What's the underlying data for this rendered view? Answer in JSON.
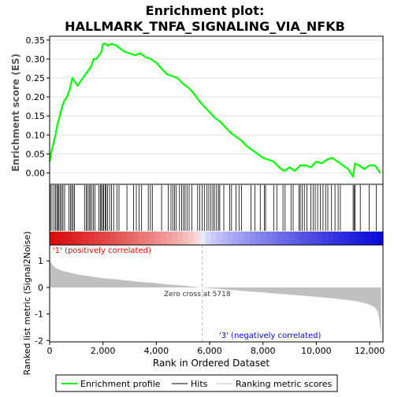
{
  "title_line1": "Enrichment plot:",
  "title_line2": "HALLMARK_TNFA_SIGNALING_VIA_NFKB",
  "colors": {
    "profile": "#00ff00",
    "hits": "#000000",
    "metric_fill": "#c0c0c0",
    "positive_label": "#ff0000",
    "negative_label": "#0000ff",
    "zero_cross_line": "#c0c0c0",
    "frame": "#000000"
  },
  "chart_data": [
    {
      "type": "line",
      "name": "enrichment-profile",
      "ylabel": "Enrichment score (ES)",
      "ylim": [
        -0.03,
        0.36
      ],
      "xlim": [
        0,
        12500
      ],
      "y_ticks": [
        0.0,
        0.05,
        0.1,
        0.15,
        0.2,
        0.25,
        0.3,
        0.35
      ],
      "y_tick_labels": [
        "0.00",
        "0.05",
        "0.10",
        "0.15",
        "0.20",
        "0.25",
        "0.30",
        "0.35"
      ],
      "grid": true,
      "x": [
        0,
        80,
        150,
        220,
        300,
        380,
        450,
        550,
        650,
        750,
        850,
        950,
        1050,
        1150,
        1250,
        1350,
        1450,
        1550,
        1650,
        1750,
        1850,
        1950,
        2000,
        2100,
        2200,
        2300,
        2400,
        2500,
        2600,
        2800,
        3000,
        3200,
        3400,
        3600,
        3800,
        4000,
        4200,
        4400,
        4600,
        4800,
        5000,
        5200,
        5400,
        5600,
        5800,
        6000,
        6200,
        6400,
        6600,
        6800,
        7000,
        7200,
        7400,
        7600,
        7800,
        8000,
        8200,
        8400,
        8600,
        8800,
        9000,
        9200,
        9400,
        9600,
        9800,
        10000,
        10200,
        10400,
        10600,
        10800,
        11000,
        11200,
        11380,
        11450,
        11600,
        11800,
        12000,
        12200,
        12400
      ],
      "y": [
        0.03,
        0.06,
        0.08,
        0.1,
        0.13,
        0.15,
        0.17,
        0.19,
        0.2,
        0.22,
        0.25,
        0.24,
        0.23,
        0.24,
        0.25,
        0.26,
        0.27,
        0.28,
        0.3,
        0.3,
        0.31,
        0.32,
        0.34,
        0.34,
        0.335,
        0.34,
        0.338,
        0.336,
        0.33,
        0.32,
        0.315,
        0.31,
        0.315,
        0.305,
        0.3,
        0.29,
        0.275,
        0.26,
        0.255,
        0.25,
        0.235,
        0.225,
        0.21,
        0.19,
        0.175,
        0.16,
        0.145,
        0.135,
        0.12,
        0.105,
        0.095,
        0.085,
        0.07,
        0.06,
        0.05,
        0.04,
        0.035,
        0.03,
        0.015,
        0.005,
        0.015,
        0.005,
        0.02,
        0.02,
        0.015,
        0.03,
        0.025,
        0.035,
        0.04,
        0.03,
        0.02,
        0.01,
        -0.01,
        0.025,
        0.02,
        0.01,
        0.02,
        0.02,
        0.0
      ]
    },
    {
      "type": "table",
      "name": "hits",
      "hit_positions": [
        30,
        90,
        160,
        220,
        270,
        310,
        350,
        400,
        450,
        500,
        560,
        720,
        780,
        830,
        880,
        930,
        1310,
        1370,
        1420,
        1480,
        1520,
        1580,
        1640,
        1700,
        1850,
        1900,
        1940,
        1990,
        2020,
        2080,
        2120,
        2170,
        2250,
        2320,
        2400,
        2520,
        2600,
        2900,
        3150,
        3250,
        3350,
        3450,
        3700,
        3780,
        3850,
        4200,
        4450,
        4550,
        4620,
        4680,
        4750,
        4870,
        4950,
        5020,
        5080,
        5150,
        5230,
        5330,
        5550,
        5630,
        5720,
        5800,
        5900,
        5970,
        6050,
        6120,
        6180,
        6260,
        6330,
        6380,
        6530,
        6750,
        6820,
        6990,
        7100,
        7200,
        7550,
        7700,
        7900,
        8050,
        8100,
        8400,
        8520,
        8750,
        8830,
        9050,
        9130,
        9350,
        9400,
        9470,
        9550,
        9650,
        9800,
        9880,
        9960,
        10050,
        10150,
        10250,
        10350,
        10430,
        10570,
        10700,
        10820,
        10900,
        11380,
        11420,
        11460,
        11650,
        11980,
        12250
      ]
    },
    {
      "type": "area",
      "name": "ranked-list-metric",
      "ylabel": "Ranked list metric (Signal2Noise)",
      "xlabel": "Rank in Ordered Dataset",
      "xlim": [
        0,
        12500
      ],
      "ylim": [
        -2.05,
        1.6
      ],
      "x_ticks": [
        0,
        2000,
        4000,
        6000,
        8000,
        10000,
        12000
      ],
      "x_tick_labels": [
        "0",
        "2,000",
        "4,000",
        "6,000",
        "8,000",
        "10,000",
        "12,000"
      ],
      "y_ticks": [
        -2,
        -1,
        0,
        1
      ],
      "y_tick_labels": [
        "-2",
        "-1",
        "0",
        "1"
      ],
      "zero_cross": 5718,
      "zero_cross_label": "Zero cross at 5718",
      "positive_label": "'1' (positively correlated)",
      "negative_label": "'3' (negatively correlated)",
      "x": [
        0,
        40,
        100,
        200,
        400,
        700,
        1000,
        1500,
        2000,
        2500,
        3000,
        3500,
        4000,
        4500,
        5000,
        5500,
        5718,
        6000,
        6500,
        7000,
        7500,
        8000,
        8500,
        9000,
        9500,
        10000,
        10500,
        11000,
        11500,
        11800,
        12000,
        12200,
        12300,
        12350,
        12400,
        12430
      ],
      "y": [
        1.05,
        0.95,
        0.85,
        0.75,
        0.65,
        0.57,
        0.5,
        0.42,
        0.35,
        0.3,
        0.25,
        0.2,
        0.16,
        0.11,
        0.07,
        0.02,
        0.0,
        -0.03,
        -0.07,
        -0.11,
        -0.15,
        -0.19,
        -0.23,
        -0.27,
        -0.31,
        -0.35,
        -0.4,
        -0.45,
        -0.52,
        -0.58,
        -0.65,
        -0.75,
        -0.9,
        -1.1,
        -1.5,
        -1.9
      ]
    }
  ],
  "legend": {
    "items": [
      {
        "label": "Enrichment profile"
      },
      {
        "label": "Hits"
      },
      {
        "label": "Ranking metric scores"
      }
    ]
  }
}
